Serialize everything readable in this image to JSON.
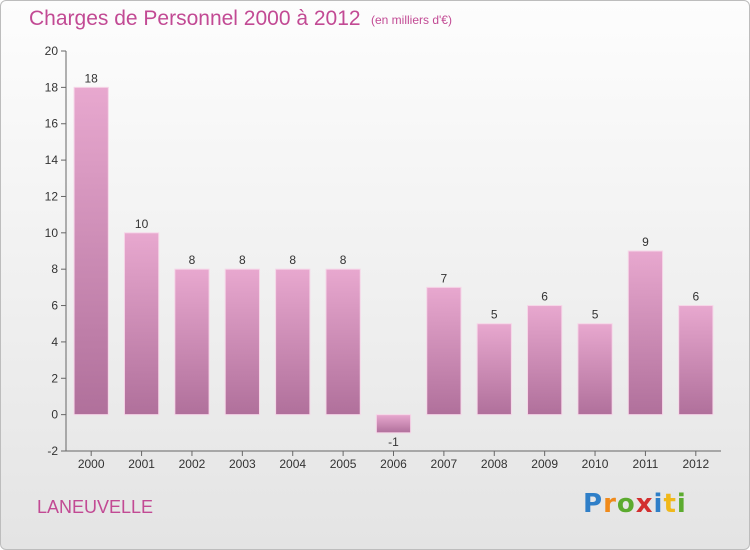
{
  "chart_data": {
    "type": "bar",
    "title": "Charges de Personnel 2000 à 2012",
    "subtitle": "(en milliers d'€)",
    "categories": [
      "2000",
      "2001",
      "2002",
      "2003",
      "2004",
      "2005",
      "2006",
      "2007",
      "2008",
      "2009",
      "2010",
      "2011",
      "2012"
    ],
    "values": [
      18,
      10,
      8,
      8,
      8,
      8,
      -1,
      7,
      5,
      6,
      5,
      9,
      6
    ],
    "ylim": [
      -2,
      20
    ],
    "yticks": [
      -2,
      0,
      2,
      4,
      6,
      8,
      10,
      12,
      14,
      16,
      18,
      20
    ],
    "grid": false,
    "bar_color": "#d998bf"
  },
  "commune": "LANEUVELLE",
  "logo": {
    "letters": [
      "P",
      "r",
      "o",
      "x",
      "i",
      "t",
      "i"
    ],
    "colors": [
      "#2f7fc8",
      "#f08a1a",
      "#5cab2f",
      "#d32f2f",
      "#2f7fc8",
      "#f0b81a",
      "#5cab2f"
    ]
  }
}
